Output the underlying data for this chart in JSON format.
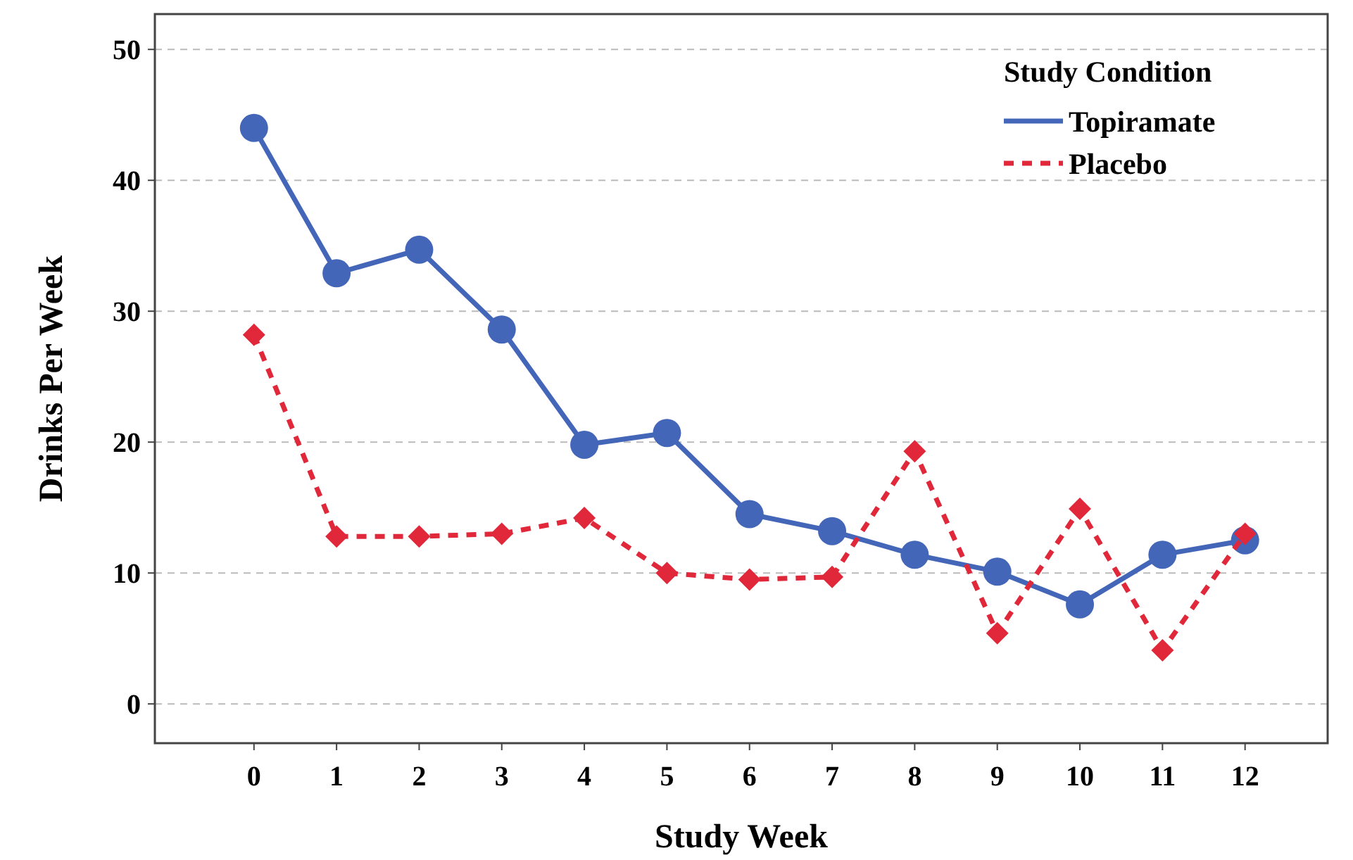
{
  "chart_data": {
    "type": "line",
    "xlabel": "Study Week",
    "ylabel": "Drinks Per Week",
    "legend_title": "Study Condition",
    "legend": "top right",
    "grid": "y",
    "x": [
      0,
      1,
      2,
      3,
      4,
      5,
      6,
      7,
      8,
      9,
      10,
      11,
      12
    ],
    "xlim": [
      -1.2,
      13
    ],
    "xticks": [
      0,
      1,
      2,
      3,
      4,
      5,
      6,
      7,
      8,
      9,
      10,
      11,
      12
    ],
    "ylim": [
      -3,
      52.7
    ],
    "yticks": [
      0,
      10,
      20,
      30,
      40,
      50
    ],
    "series": [
      {
        "name": "Topiramate",
        "color": "#4466b8",
        "marker": "circle",
        "line_style": "solid",
        "values": [
          44.0,
          32.9,
          34.7,
          28.6,
          19.8,
          20.7,
          14.5,
          13.2,
          11.4,
          10.1,
          7.6,
          11.4,
          12.5
        ]
      },
      {
        "name": "Placebo",
        "color": "#e0283a",
        "marker": "diamond",
        "line_style": "dashed",
        "values": [
          28.2,
          12.8,
          12.8,
          13.0,
          14.2,
          10.0,
          9.5,
          9.7,
          19.3,
          5.4,
          14.9,
          4.1,
          13.0
        ]
      }
    ]
  }
}
